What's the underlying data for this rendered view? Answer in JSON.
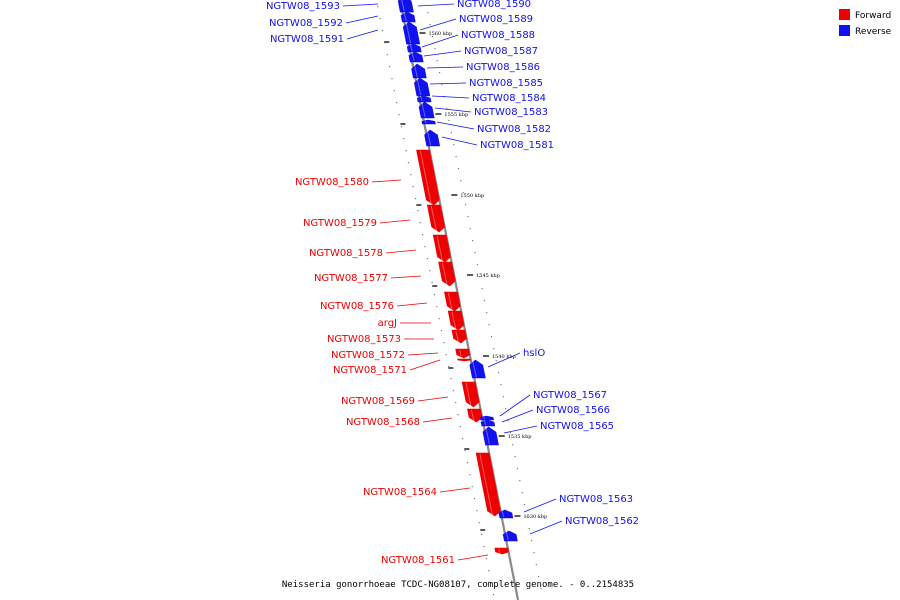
{
  "colors": {
    "forward": "#ee0000",
    "reverse": "#1111ee",
    "backbone": "#888888"
  },
  "legend": [
    {
      "label": "Forward",
      "color": "#ee0000"
    },
    {
      "label": "Reverse",
      "color": "#1111ee"
    }
  ],
  "caption": "Neisseria gonorrhoeae TCDC-NG08107, complete genome. - 0..2154835",
  "scale_ticks": [
    {
      "label": "1560 kbp"
    },
    {
      "label": "1555 kbp"
    },
    {
      "label": "1550 kbp"
    },
    {
      "label": "1545 kbp"
    },
    {
      "label": "1540 kbp"
    },
    {
      "label": "1535 kbp"
    },
    {
      "label": "1530 kbp"
    }
  ],
  "genes": [
    {
      "name": "NGTW08_1593",
      "strand": "reverse"
    },
    {
      "name": "NGTW08_1592",
      "strand": "reverse"
    },
    {
      "name": "NGTW08_1591",
      "strand": "reverse"
    },
    {
      "name": "NGTW08_1590",
      "strand": "reverse"
    },
    {
      "name": "NGTW08_1589",
      "strand": "reverse"
    },
    {
      "name": "NGTW08_1588",
      "strand": "reverse"
    },
    {
      "name": "NGTW08_1587",
      "strand": "reverse"
    },
    {
      "name": "NGTW08_1586",
      "strand": "reverse"
    },
    {
      "name": "NGTW08_1585",
      "strand": "reverse"
    },
    {
      "name": "NGTW08_1584",
      "strand": "reverse"
    },
    {
      "name": "NGTW08_1583",
      "strand": "reverse"
    },
    {
      "name": "NGTW08_1582",
      "strand": "reverse"
    },
    {
      "name": "NGTW08_1581",
      "strand": "reverse"
    },
    {
      "name": "NGTW08_1580",
      "strand": "forward"
    },
    {
      "name": "NGTW08_1579",
      "strand": "forward"
    },
    {
      "name": "NGTW08_1578",
      "strand": "forward"
    },
    {
      "name": "NGTW08_1577",
      "strand": "forward"
    },
    {
      "name": "NGTW08_1576",
      "strand": "forward"
    },
    {
      "name": "argJ",
      "strand": "forward"
    },
    {
      "name": "NGTW08_1573",
      "strand": "forward"
    },
    {
      "name": "NGTW08_1572",
      "strand": "forward"
    },
    {
      "name": "NGTW08_1571",
      "strand": "forward"
    },
    {
      "name": "hslO",
      "strand": "reverse"
    },
    {
      "name": "NGTW08_1569",
      "strand": "forward"
    },
    {
      "name": "NGTW08_1568",
      "strand": "forward"
    },
    {
      "name": "NGTW08_1567",
      "strand": "reverse"
    },
    {
      "name": "NGTW08_1566",
      "strand": "reverse"
    },
    {
      "name": "NGTW08_1565",
      "strand": "reverse"
    },
    {
      "name": "NGTW08_1564",
      "strand": "forward"
    },
    {
      "name": "NGTW08_1563",
      "strand": "reverse"
    },
    {
      "name": "NGTW08_1562",
      "strand": "reverse"
    },
    {
      "name": "NGTW08_1561",
      "strand": "forward"
    }
  ]
}
